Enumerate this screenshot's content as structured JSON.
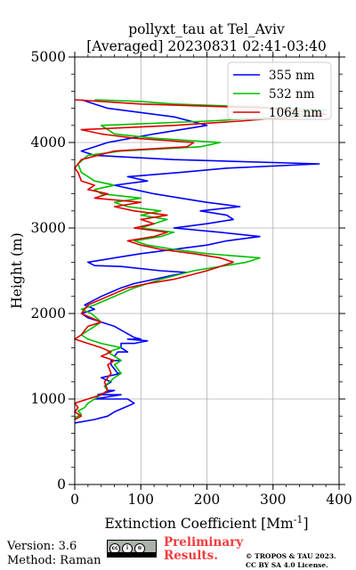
{
  "chart_data": {
    "type": "line",
    "title": [
      "pollyxt_tau at Tel_Aviv",
      "[Averaged] 20230831 02:41-03:40"
    ],
    "xlabel": "Extinction Coefficient [Mm",
    "xlabel_sup": "-1",
    "xlabel_tail": "]",
    "ylabel": "Height (m)",
    "xlim": [
      0,
      400
    ],
    "ylim": [
      0,
      5000
    ],
    "xticks": [
      "0",
      "100",
      "200",
      "300",
      "400"
    ],
    "yticks": [
      "0",
      "1000",
      "2000",
      "3000",
      "4000",
      "5000"
    ],
    "grid": true,
    "legend_position": "top-right",
    "series": [
      {
        "name": "355 nm",
        "color": "#0000ff",
        "points": [
          [
            0,
            720
          ],
          [
            30,
            760
          ],
          [
            50,
            800
          ],
          [
            60,
            850
          ],
          [
            75,
            900
          ],
          [
            90,
            950
          ],
          [
            80,
            1000
          ],
          [
            70,
            1050
          ],
          [
            60,
            1100
          ],
          [
            55,
            1200
          ],
          [
            70,
            1300
          ],
          [
            60,
            1350
          ],
          [
            55,
            1450
          ],
          [
            65,
            1550
          ],
          [
            70,
            1650
          ],
          [
            80,
            1700
          ],
          [
            90,
            1720
          ],
          [
            100,
            1700
          ],
          [
            110,
            1680
          ],
          [
            90,
            1650
          ],
          [
            70,
            1600
          ],
          [
            80,
            1550
          ],
          [
            60,
            1500
          ],
          [
            70,
            1450
          ],
          [
            55,
            1400
          ],
          [
            65,
            1300
          ],
          [
            40,
            1250
          ],
          [
            55,
            1200
          ],
          [
            45,
            1150
          ],
          [
            50,
            1100
          ],
          [
            35,
            1050
          ],
          [
            30,
            1000
          ],
          [
            60,
            1850
          ],
          [
            40,
            1900
          ],
          [
            20,
            1950
          ],
          [
            10,
            2000
          ],
          [
            30,
            2050
          ],
          [
            15,
            2100
          ],
          [
            40,
            2200
          ],
          [
            70,
            2300
          ],
          [
            90,
            2350
          ],
          [
            120,
            2400
          ],
          [
            150,
            2450
          ],
          [
            170,
            2480
          ],
          [
            130,
            2500
          ],
          [
            70,
            2550
          ],
          [
            30,
            2560
          ],
          [
            20,
            2600
          ],
          [
            100,
            2700
          ],
          [
            200,
            2800
          ],
          [
            230,
            2850
          ],
          [
            280,
            2900
          ],
          [
            220,
            2950
          ],
          [
            150,
            3000
          ],
          [
            200,
            3050
          ],
          [
            240,
            3100
          ],
          [
            230,
            3150
          ],
          [
            190,
            3200
          ],
          [
            250,
            3250
          ],
          [
            200,
            3300
          ],
          [
            160,
            3350
          ],
          [
            120,
            3400
          ],
          [
            90,
            3450
          ],
          [
            60,
            3500
          ],
          [
            110,
            3550
          ],
          [
            80,
            3600
          ],
          [
            160,
            3650
          ],
          [
            230,
            3700
          ],
          [
            370,
            3750
          ],
          [
            150,
            3800
          ],
          [
            30,
            3850
          ],
          [
            10,
            3900
          ],
          [
            50,
            4000
          ],
          [
            120,
            4100
          ],
          [
            200,
            4200
          ],
          [
            150,
            4300
          ],
          [
            50,
            4400
          ],
          [
            10,
            4500
          ]
        ]
      },
      {
        "name": "532 nm",
        "color": "#00c000",
        "points": [
          [
            0,
            780
          ],
          [
            10,
            820
          ],
          [
            5,
            860
          ],
          [
            15,
            900
          ],
          [
            20,
            950
          ],
          [
            30,
            1000
          ],
          [
            40,
            1050
          ],
          [
            50,
            1100
          ],
          [
            45,
            1150
          ],
          [
            60,
            1250
          ],
          [
            70,
            1300
          ],
          [
            60,
            1400
          ],
          [
            70,
            1450
          ],
          [
            60,
            1500
          ],
          [
            50,
            1550
          ],
          [
            70,
            1600
          ],
          [
            40,
            1650
          ],
          [
            20,
            1700
          ],
          [
            10,
            1750
          ],
          [
            30,
            1850
          ],
          [
            40,
            1900
          ],
          [
            25,
            2000
          ],
          [
            10,
            2050
          ],
          [
            30,
            2100
          ],
          [
            60,
            2200
          ],
          [
            90,
            2300
          ],
          [
            130,
            2400
          ],
          [
            180,
            2500
          ],
          [
            260,
            2600
          ],
          [
            280,
            2650
          ],
          [
            200,
            2700
          ],
          [
            150,
            2750
          ],
          [
            110,
            2800
          ],
          [
            90,
            2850
          ],
          [
            130,
            2900
          ],
          [
            150,
            2950
          ],
          [
            100,
            3000
          ],
          [
            140,
            3100
          ],
          [
            100,
            3150
          ],
          [
            130,
            3200
          ],
          [
            80,
            3250
          ],
          [
            60,
            3300
          ],
          [
            100,
            3350
          ],
          [
            40,
            3400
          ],
          [
            30,
            3450
          ],
          [
            60,
            3500
          ],
          [
            30,
            3550
          ],
          [
            10,
            3650
          ],
          [
            5,
            3750
          ],
          [
            20,
            3850
          ],
          [
            70,
            3900
          ],
          [
            190,
            3950
          ],
          [
            220,
            4000
          ],
          [
            120,
            4050
          ],
          [
            60,
            4100
          ],
          [
            40,
            4200
          ],
          [
            200,
            4250
          ],
          [
            320,
            4300
          ],
          [
            380,
            4380
          ],
          [
            260,
            4420
          ],
          [
            150,
            4450
          ],
          [
            100,
            4480
          ],
          [
            30,
            4500
          ]
        ]
      },
      {
        "name": "1064 nm",
        "color": "#e00000",
        "points": [
          [
            0,
            760
          ],
          [
            10,
            800
          ],
          [
            0,
            850
          ],
          [
            5,
            900
          ],
          [
            0,
            950
          ],
          [
            20,
            1000
          ],
          [
            40,
            1050
          ],
          [
            50,
            1100
          ],
          [
            45,
            1200
          ],
          [
            55,
            1300
          ],
          [
            50,
            1400
          ],
          [
            60,
            1450
          ],
          [
            40,
            1500
          ],
          [
            55,
            1550
          ],
          [
            40,
            1600
          ],
          [
            20,
            1650
          ],
          [
            0,
            1700
          ],
          [
            10,
            1750
          ],
          [
            20,
            1850
          ],
          [
            40,
            1900
          ],
          [
            25,
            1950
          ],
          [
            10,
            2000
          ],
          [
            20,
            2100
          ],
          [
            50,
            2200
          ],
          [
            80,
            2300
          ],
          [
            110,
            2350
          ],
          [
            150,
            2400
          ],
          [
            200,
            2500
          ],
          [
            240,
            2600
          ],
          [
            220,
            2650
          ],
          [
            180,
            2700
          ],
          [
            130,
            2750
          ],
          [
            100,
            2800
          ],
          [
            80,
            2850
          ],
          [
            120,
            2900
          ],
          [
            140,
            2950
          ],
          [
            90,
            3000
          ],
          [
            120,
            3050
          ],
          [
            100,
            3100
          ],
          [
            140,
            3150
          ],
          [
            90,
            3200
          ],
          [
            60,
            3250
          ],
          [
            100,
            3300
          ],
          [
            30,
            3350
          ],
          [
            50,
            3400
          ],
          [
            20,
            3450
          ],
          [
            30,
            3500
          ],
          [
            10,
            3550
          ],
          [
            5,
            3650
          ],
          [
            0,
            3700
          ],
          [
            10,
            3800
          ],
          [
            60,
            3900
          ],
          [
            170,
            3950
          ],
          [
            180,
            4000
          ],
          [
            90,
            4050
          ],
          [
            40,
            4100
          ],
          [
            10,
            4150
          ],
          [
            150,
            4200
          ],
          [
            250,
            4250
          ],
          [
            380,
            4330
          ],
          [
            300,
            4400
          ],
          [
            100,
            4450
          ],
          [
            40,
            4480
          ],
          [
            0,
            4500
          ]
        ]
      }
    ]
  },
  "footer": {
    "version": "Version: 3.6",
    "method": "Method: Raman",
    "cc_icons": [
      "cc",
      "i",
      "⊜"
    ],
    "preliminary_line1": "Preliminary",
    "preliminary_line2": "Results.",
    "copyright_line1": "© TROPOS & TAU 2023.",
    "copyright_line2": "CC BY SA 4.0 License."
  }
}
